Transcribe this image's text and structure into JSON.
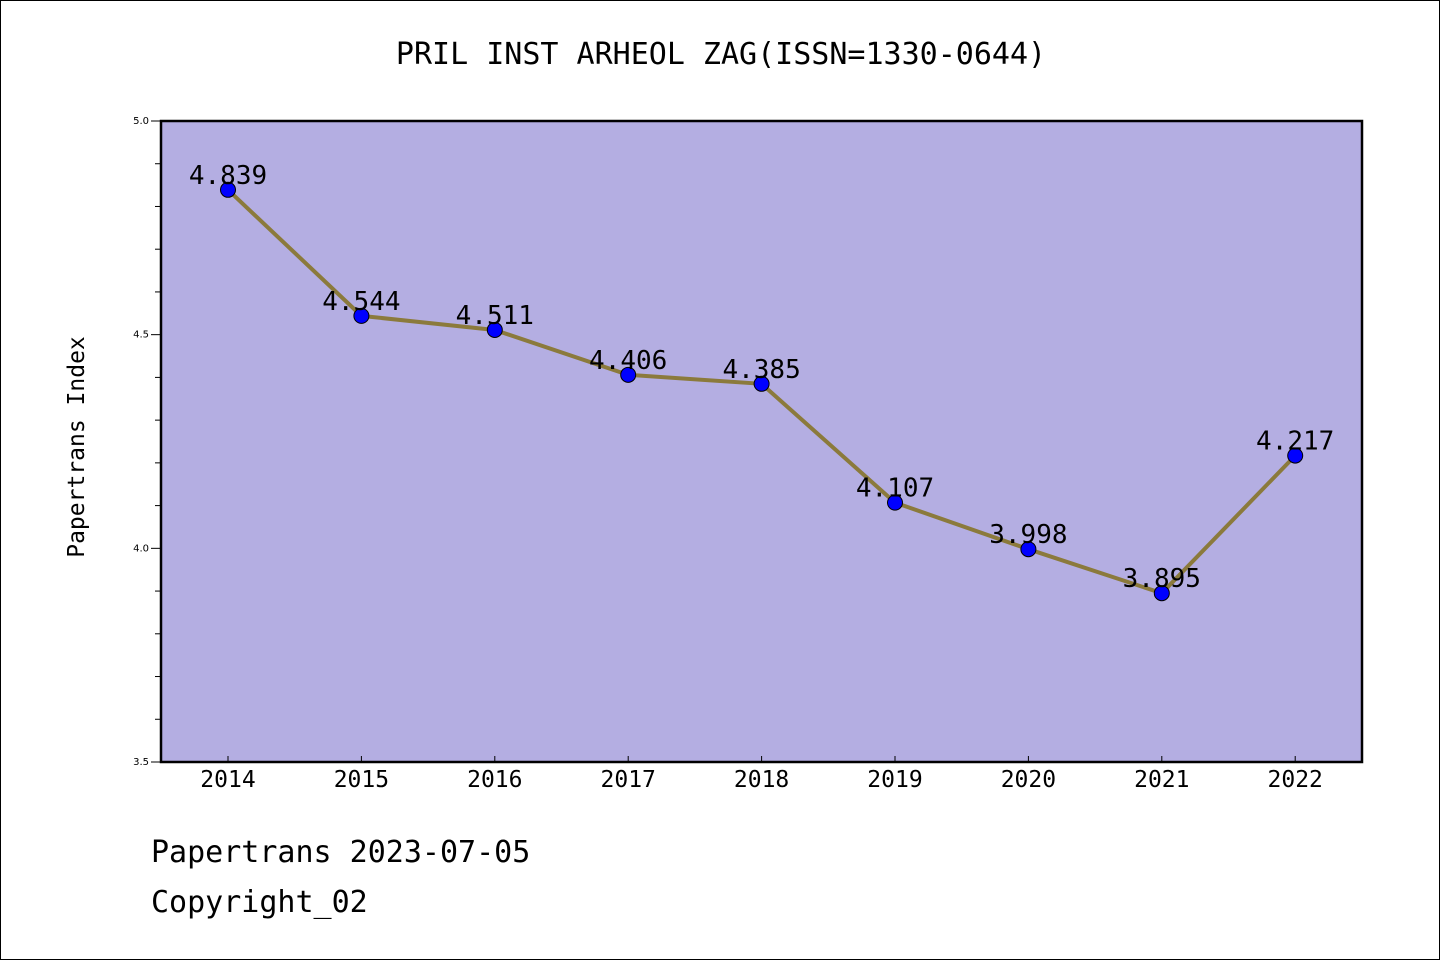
{
  "chart_data": {
    "type": "line",
    "title": "PRIL INST ARHEOL ZAG(ISSN=1330-0644)",
    "xlabel": "",
    "ylabel": "Papertrans Index",
    "categories": [
      "2014",
      "2015",
      "2016",
      "2017",
      "2018",
      "2019",
      "2020",
      "2021",
      "2022"
    ],
    "series": [
      {
        "values": [
          4.839,
          4.544,
          4.511,
          4.406,
          4.385,
          4.107,
          3.998,
          3.895,
          4.217
        ],
        "labels": [
          "4.839",
          "4.544",
          "4.511",
          "4.406",
          "4.385",
          "4.107",
          "3.998",
          "3.895",
          "4.217"
        ]
      }
    ],
    "ylim": [
      3.5,
      5.0
    ],
    "yticks": [
      "3.5",
      "4.0",
      "4.5",
      "5.0"
    ],
    "grid": false,
    "colors": {
      "plot_background": "#b4aee2",
      "line": "#8b7a3c",
      "marker": "#0000ff"
    }
  },
  "footer": {
    "line1": "Papertrans 2023-07-05",
    "line2": "Copyright_02"
  }
}
